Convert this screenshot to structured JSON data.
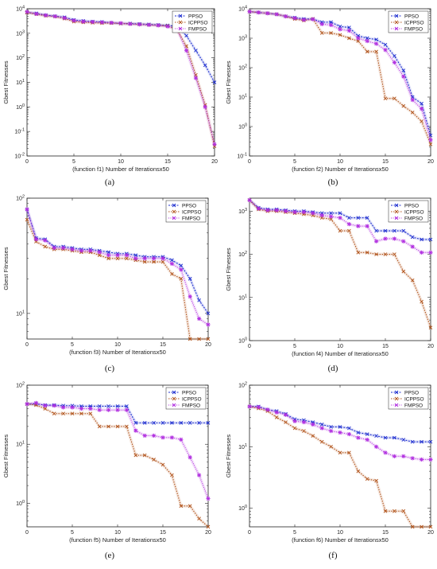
{
  "colors": {
    "PPSO": "#1f2fd0",
    "ICPPSO": "#b1541c",
    "FMPSO": "#b12fe0"
  },
  "chart_data": [
    {
      "type": "line",
      "yscale": "log",
      "grid": false,
      "legend": "top-right",
      "caption": "(a)",
      "xlabel_func": "(function f1)",
      "xlabel": "Number of Iterationsx50",
      "ylabel": "Gbest Fitnesses",
      "xlim": [
        0,
        20
      ],
      "ylim": [
        0.01,
        10000
      ],
      "xticks": [
        "0",
        "5",
        "10",
        "15",
        "20"
      ],
      "yticks": [
        {
          "v": 0.01,
          "b": "10",
          "e": "-2"
        },
        {
          "v": 0.1,
          "b": "10",
          "e": "-1"
        },
        {
          "v": 1,
          "b": "10",
          "e": "0"
        },
        {
          "v": 10,
          "b": "10",
          "e": "1"
        },
        {
          "v": 100,
          "b": "10",
          "e": "2"
        },
        {
          "v": 1000,
          "b": "10",
          "e": "3"
        },
        {
          "v": 10000,
          "b": "10",
          "e": "4"
        }
      ],
      "x": [
        0,
        1,
        2,
        3,
        4,
        5,
        6,
        7,
        8,
        9,
        10,
        11,
        12,
        13,
        14,
        15,
        16,
        17,
        18,
        19,
        20
      ],
      "series": [
        {
          "name": "PPSO",
          "values": [
            7000,
            6500,
            5500,
            5000,
            4500,
            3500,
            3200,
            3000,
            2900,
            2700,
            2500,
            2500,
            2400,
            2300,
            2200,
            2100,
            1900,
            800,
            200,
            50,
            10
          ]
        },
        {
          "name": "ICPPSO",
          "values": [
            7000,
            6000,
            5200,
            4800,
            4000,
            3000,
            2800,
            2700,
            2600,
            2600,
            2500,
            2400,
            2300,
            2200,
            2100,
            2000,
            1400,
            300,
            20,
            1.2,
            0.025
          ]
        },
        {
          "name": "FMPSO",
          "values": [
            7500,
            6200,
            5400,
            4900,
            4200,
            3300,
            3000,
            2900,
            2800,
            2700,
            2600,
            2400,
            2300,
            2200,
            2100,
            1900,
            1500,
            200,
            15,
            1,
            0.03
          ]
        }
      ]
    },
    {
      "type": "line",
      "yscale": "log",
      "grid": false,
      "legend": "top-right",
      "caption": "(b)",
      "xlabel_func": "(function f2)",
      "xlabel": "Number of Iterationsx50",
      "ylabel": "Gbest Fitnesses",
      "xlim": [
        0,
        20
      ],
      "ylim": [
        0.1,
        10000
      ],
      "xticks": [
        "0",
        "5",
        "10",
        "15",
        "20"
      ],
      "yticks": [
        {
          "v": 0.1,
          "b": "10",
          "e": "-1"
        },
        {
          "v": 1,
          "b": "10",
          "e": "0"
        },
        {
          "v": 10,
          "b": "10",
          "e": "1"
        },
        {
          "v": 100,
          "b": "10",
          "e": "2"
        },
        {
          "v": 1000,
          "b": "10",
          "e": "3"
        },
        {
          "v": 10000,
          "b": "10",
          "e": "4"
        }
      ],
      "x": [
        0,
        1,
        2,
        3,
        4,
        5,
        6,
        7,
        8,
        9,
        10,
        11,
        12,
        13,
        14,
        15,
        16,
        17,
        18,
        19,
        20
      ],
      "series": [
        {
          "name": "PPSO",
          "values": [
            8000,
            7500,
            7000,
            6500,
            5500,
            5000,
            4500,
            4500,
            3500,
            3500,
            2500,
            2300,
            1200,
            1000,
            900,
            600,
            250,
            80,
            10,
            6,
            0.5
          ]
        },
        {
          "name": "ICPPSO",
          "values": [
            8000,
            7500,
            7000,
            6500,
            5500,
            4500,
            4000,
            4500,
            1500,
            1500,
            1300,
            1000,
            800,
            350,
            350,
            9,
            9,
            5,
            3,
            1.5,
            0.25
          ]
        },
        {
          "name": "FMPSO",
          "values": [
            8000,
            7500,
            7000,
            6500,
            5500,
            4800,
            4200,
            4400,
            3000,
            2800,
            2000,
            1800,
            1000,
            800,
            650,
            400,
            150,
            50,
            8,
            4,
            0.35
          ]
        }
      ]
    },
    {
      "type": "line",
      "yscale": "log",
      "grid": false,
      "legend": "top-right",
      "caption": "(c)",
      "xlabel_func": "(function f3)",
      "xlabel": "Number of Iterationsx50",
      "ylabel": "Gbest Fitnesses",
      "xlim": [
        0,
        20
      ],
      "ylim": [
        6,
        100
      ],
      "xticks": [
        "0",
        "5",
        "10",
        "15",
        "20"
      ],
      "yticks": [
        {
          "v": 10,
          "b": "10",
          "e": "1"
        },
        {
          "v": 100,
          "b": "10",
          "e": "2"
        }
      ],
      "x": [
        0,
        1,
        2,
        3,
        4,
        5,
        6,
        7,
        8,
        9,
        10,
        11,
        12,
        13,
        14,
        15,
        16,
        17,
        18,
        19,
        20
      ],
      "series": [
        {
          "name": "PPSO",
          "values": [
            80,
            45,
            44,
            38,
            38,
            37,
            36,
            36,
            35,
            34,
            33,
            33,
            32,
            31,
            31,
            31,
            29,
            26,
            20,
            13,
            10
          ]
        },
        {
          "name": "ICPPSO",
          "values": [
            65,
            42,
            38,
            36,
            36,
            35,
            34,
            34,
            32,
            30,
            30,
            30,
            29,
            28,
            28,
            28,
            22,
            20,
            6,
            6,
            6
          ]
        },
        {
          "name": "FMPSO",
          "values": [
            80,
            44,
            43,
            37,
            37,
            36,
            35,
            35,
            34,
            32,
            32,
            32,
            30,
            30,
            30,
            30,
            27,
            24,
            14,
            9,
            8
          ]
        }
      ]
    },
    {
      "type": "line",
      "yscale": "log",
      "grid": false,
      "legend": "top-right",
      "caption": "(d)",
      "xlabel_func": "(function f4)",
      "xlabel": "Number of Iterationsx50",
      "ylabel": "Gbest Fitnesses",
      "xlim": [
        0,
        20
      ],
      "ylim": [
        1,
        2000
      ],
      "xticks": [
        "0",
        "5",
        "10",
        "15",
        "20"
      ],
      "yticks": [
        {
          "v": 1,
          "b": "10",
          "e": "0"
        },
        {
          "v": 10,
          "b": "10",
          "e": "1"
        },
        {
          "v": 100,
          "b": "10",
          "e": "2"
        },
        {
          "v": 1000,
          "b": "10",
          "e": "3"
        }
      ],
      "x": [
        0,
        1,
        2,
        3,
        4,
        5,
        6,
        7,
        8,
        9,
        10,
        11,
        12,
        13,
        14,
        15,
        16,
        17,
        18,
        19,
        20
      ],
      "series": [
        {
          "name": "PPSO",
          "values": [
            1800,
            1200,
            1100,
            1100,
            1050,
            1000,
            1000,
            950,
            900,
            900,
            900,
            700,
            700,
            700,
            350,
            350,
            350,
            350,
            250,
            220,
            220
          ]
        },
        {
          "name": "ICPPSO",
          "values": [
            1800,
            1100,
            1000,
            1000,
            950,
            900,
            850,
            800,
            700,
            650,
            350,
            350,
            110,
            110,
            100,
            100,
            100,
            40,
            25,
            8,
            2
          ]
        },
        {
          "name": "FMPSO",
          "values": [
            1800,
            1150,
            1050,
            1050,
            1000,
            950,
            950,
            900,
            800,
            750,
            700,
            500,
            450,
            450,
            200,
            230,
            230,
            200,
            150,
            110,
            110
          ]
        }
      ]
    },
    {
      "type": "line",
      "yscale": "log",
      "grid": false,
      "legend": "top-right",
      "caption": "(e)",
      "xlabel_func": "(function f5)",
      "xlabel": "Number of Iterationsx50",
      "ylabel": "Gbest Fitnesses",
      "xlim": [
        0,
        20
      ],
      "ylim": [
        0.4,
        100
      ],
      "xticks": [
        "0",
        "5",
        "10",
        "15",
        "20"
      ],
      "yticks": [
        {
          "v": 1,
          "b": "10",
          "e": "0"
        },
        {
          "v": 10,
          "b": "10",
          "e": "1"
        },
        {
          "v": 100,
          "b": "10",
          "e": "2"
        }
      ],
      "x": [
        0,
        1,
        2,
        3,
        4,
        5,
        6,
        7,
        8,
        9,
        10,
        11,
        12,
        13,
        14,
        15,
        16,
        17,
        18,
        19,
        20
      ],
      "series": [
        {
          "name": "PPSO",
          "values": [
            48,
            48,
            46,
            46,
            45,
            45,
            44,
            44,
            44,
            44,
            44,
            44,
            23,
            23,
            23,
            23,
            23,
            23,
            23,
            23,
            23
          ]
        },
        {
          "name": "ICPPSO",
          "values": [
            48,
            46,
            40,
            33,
            33,
            33,
            33,
            33,
            20,
            20,
            20,
            20,
            6.5,
            6.5,
            5.5,
            4.5,
            3,
            0.9,
            0.9,
            0.55,
            0.4
          ]
        },
        {
          "name": "FMPSO",
          "values": [
            48,
            50,
            45,
            45,
            42,
            42,
            40,
            40,
            38,
            38,
            38,
            38,
            17,
            14,
            14,
            13,
            13,
            12,
            6,
            3,
            1.2
          ]
        }
      ]
    },
    {
      "type": "line",
      "yscale": "log",
      "grid": false,
      "legend": "top-right",
      "caption": "(f)",
      "xlabel_func": "(function f6)",
      "xlabel": "Number of Iterationsx50",
      "ylabel": "Gbest Fitnesses",
      "xlim": [
        0,
        20
      ],
      "ylim": [
        0.5,
        100
      ],
      "xticks": [
        "0",
        "5",
        "10",
        "15",
        "20"
      ],
      "yticks": [
        {
          "v": 1,
          "b": "10",
          "e": "0"
        },
        {
          "v": 10,
          "b": "10",
          "e": "1"
        },
        {
          "v": 100,
          "b": "10",
          "e": "2"
        }
      ],
      "x": [
        0,
        1,
        2,
        3,
        4,
        5,
        6,
        7,
        8,
        9,
        10,
        11,
        12,
        13,
        14,
        15,
        16,
        17,
        18,
        19,
        20
      ],
      "series": [
        {
          "name": "PPSO",
          "values": [
            45,
            45,
            40,
            38,
            34,
            28,
            27,
            25,
            23,
            21,
            21,
            20,
            17,
            16,
            15,
            14,
            14,
            13,
            12,
            12,
            12
          ]
        },
        {
          "name": "ICPPSO",
          "values": [
            45,
            42,
            38,
            30,
            25,
            20,
            18,
            15,
            12,
            10,
            8,
            8,
            4,
            3,
            2.8,
            0.9,
            0.9,
            0.9,
            0.5,
            0.5,
            0.5
          ]
        },
        {
          "name": "FMPSO",
          "values": [
            45,
            44,
            40,
            36,
            33,
            26,
            25,
            23,
            20,
            18,
            17,
            16,
            14,
            13,
            10,
            8,
            7,
            7,
            6.5,
            6.2,
            6.2
          ]
        }
      ]
    }
  ]
}
